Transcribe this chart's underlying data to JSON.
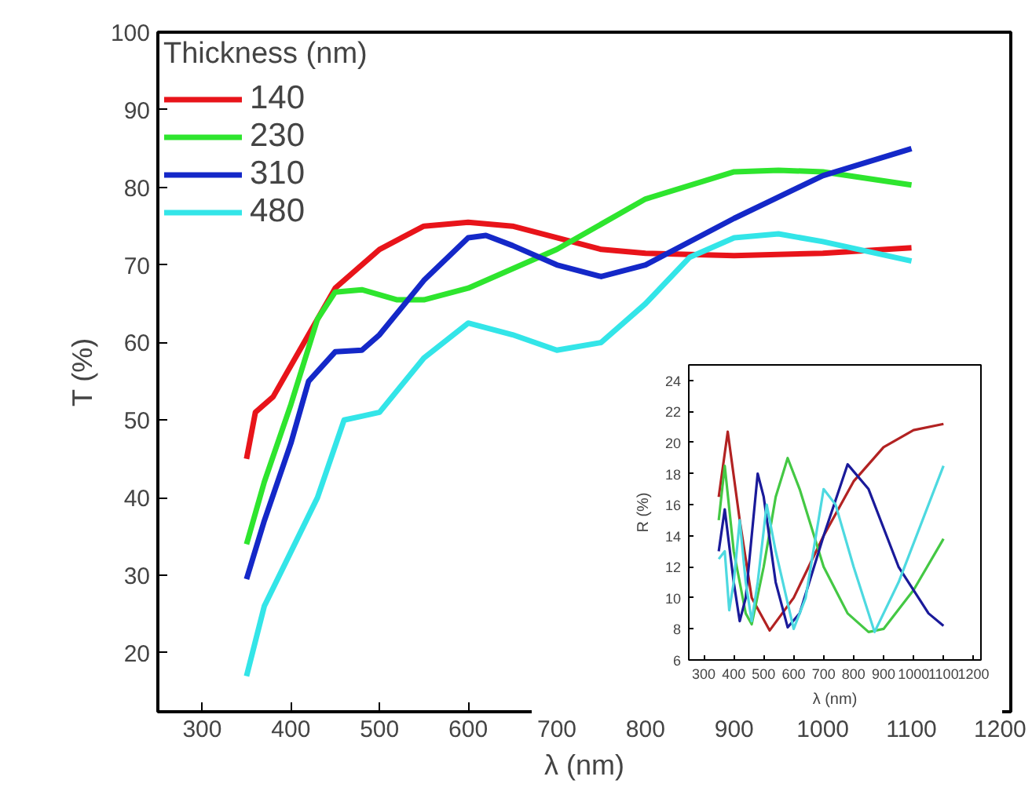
{
  "chart_data": [
    {
      "type": "line",
      "xlabel": "λ (nm)",
      "ylabel": "T (%)",
      "legend_title": "Thickness (nm)",
      "legend": "top left",
      "grid": false,
      "xlim": [
        250,
        1212
      ],
      "ylim": [
        12.4,
        100
      ],
      "xticks": [
        300,
        400,
        500,
        600,
        700,
        800,
        900,
        1000,
        1100,
        1200
      ],
      "yticks": [
        20,
        30,
        40,
        50,
        60,
        70,
        80,
        90,
        100
      ],
      "series": [
        {
          "name": "140",
          "color": "#e8141a",
          "x": [
            350,
            360,
            380,
            400,
            430,
            450,
            500,
            550,
            600,
            650,
            700,
            750,
            800,
            900,
            1000,
            1100
          ],
          "values": [
            45,
            51,
            53,
            57,
            63,
            67,
            72,
            75,
            75.5,
            75,
            73.5,
            72,
            71.5,
            71.2,
            71.5,
            72.2
          ]
        },
        {
          "name": "230",
          "color": "#2ee52e",
          "x": [
            350,
            370,
            400,
            430,
            450,
            480,
            520,
            550,
            600,
            700,
            800,
            900,
            950,
            1000,
            1100
          ],
          "values": [
            34,
            42,
            52,
            63,
            66.5,
            66.8,
            65.5,
            65.5,
            67,
            72,
            78.5,
            82,
            82.2,
            82,
            80.3
          ]
        },
        {
          "name": "310",
          "color": "#1428c8",
          "x": [
            350,
            370,
            400,
            420,
            450,
            480,
            500,
            550,
            600,
            620,
            650,
            700,
            750,
            800,
            900,
            1000,
            1100
          ],
          "values": [
            29.5,
            37,
            47,
            55,
            58.8,
            59,
            61,
            68,
            73.5,
            73.8,
            72.5,
            70,
            68.5,
            70,
            76,
            81.5,
            85
          ]
        },
        {
          "name": "480",
          "color": "#33e5e8",
          "x": [
            350,
            370,
            400,
            430,
            460,
            480,
            500,
            550,
            600,
            650,
            700,
            750,
            800,
            850,
            900,
            950,
            1000,
            1100
          ],
          "values": [
            17,
            26,
            33,
            40,
            50,
            50.5,
            51,
            58,
            62.5,
            61,
            59,
            60,
            65,
            71,
            73.5,
            74,
            73,
            70.5
          ]
        }
      ]
    },
    {
      "type": "line",
      "xlabel": "λ (nm)",
      "ylabel": "R (%)",
      "grid": false,
      "xlim": [
        250,
        1225
      ],
      "ylim": [
        6,
        25
      ],
      "xticks": [
        300,
        400,
        500,
        600,
        700,
        800,
        900,
        1000,
        1100,
        1200
      ],
      "yticks": [
        6,
        8,
        10,
        12,
        14,
        16,
        18,
        20,
        22,
        24
      ],
      "series": [
        {
          "color": "#b22222",
          "x": [
            350,
            380,
            420,
            460,
            520,
            600,
            700,
            800,
            900,
            1000,
            1100
          ],
          "values": [
            16.5,
            20.7,
            15,
            10,
            7.9,
            10,
            14,
            17.5,
            19.7,
            20.8,
            21.2
          ]
        },
        {
          "color": "#44c844",
          "x": [
            350,
            370,
            400,
            440,
            460,
            500,
            540,
            580,
            620,
            700,
            780,
            850,
            900,
            1000,
            1100
          ],
          "values": [
            15,
            18.5,
            13,
            9,
            8.3,
            12,
            16.5,
            19,
            17,
            12,
            9,
            7.8,
            8,
            10.5,
            13.8
          ]
        },
        {
          "color": "#1a1a9a",
          "x": [
            350,
            370,
            400,
            420,
            440,
            480,
            500,
            540,
            580,
            620,
            700,
            780,
            850,
            950,
            1050,
            1100
          ],
          "values": [
            13,
            15.7,
            11,
            8.5,
            10,
            18,
            16.5,
            11,
            8.1,
            9,
            14,
            18.6,
            17,
            12,
            9,
            8.2
          ]
        },
        {
          "color": "#4dd9e0",
          "x": [
            350,
            370,
            385,
            400,
            420,
            440,
            460,
            480,
            510,
            540,
            600,
            640,
            700,
            740,
            800,
            870,
            950,
            1030,
            1100
          ],
          "values": [
            12.5,
            13,
            9.2,
            11,
            15,
            11,
            8.5,
            11,
            16,
            13,
            8,
            10,
            17,
            16,
            12,
            7.8,
            11,
            15,
            18.5
          ]
        }
      ]
    }
  ]
}
